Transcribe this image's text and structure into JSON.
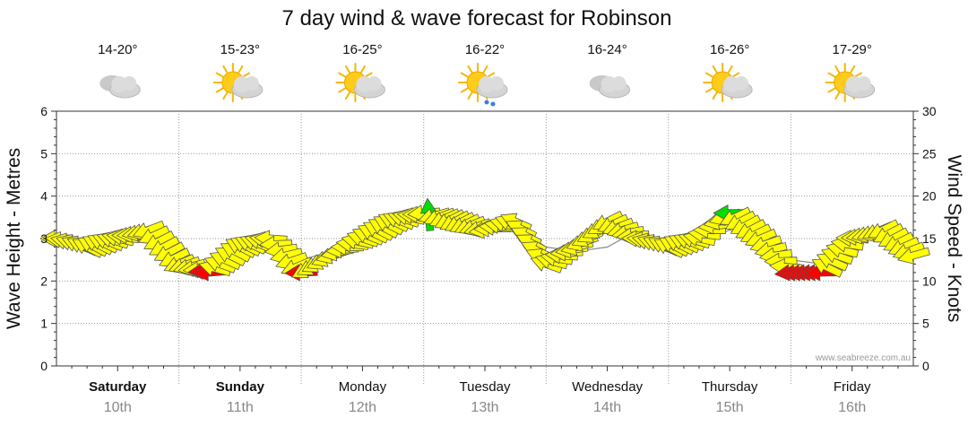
{
  "chart_data": {
    "type": "line",
    "title": "7 day wind & wave forecast for Robinson",
    "ylabel_left": "Wave Height - Metres",
    "ylabel_right": "Wind Speed - Knots",
    "ylim_left": [
      0,
      6
    ],
    "ylim_right": [
      0,
      30
    ],
    "yticks_left": [
      "0",
      "1",
      "2",
      "3",
      "4",
      "5",
      "6"
    ],
    "yticks_right": [
      "0",
      "5",
      "10",
      "15",
      "20",
      "25",
      "30"
    ],
    "grid": "dotted",
    "watermark": "www.seabreeze.com.au",
    "days": [
      {
        "name": "Saturday",
        "date": "10th",
        "temp": "14-20°",
        "icon": "cloudy-icon",
        "bold": true
      },
      {
        "name": "Sunday",
        "date": "11th",
        "temp": "15-23°",
        "icon": "partly-cloudy-icon",
        "bold": true
      },
      {
        "name": "Monday",
        "date": "12th",
        "temp": "16-25°",
        "icon": "partly-cloudy-icon",
        "bold": false
      },
      {
        "name": "Tuesday",
        "date": "13th",
        "temp": "16-22°",
        "icon": "showers-icon",
        "bold": false
      },
      {
        "name": "Wednesday",
        "date": "14th",
        "temp": "16-24°",
        "icon": "cloudy-icon",
        "bold": false
      },
      {
        "name": "Thursday",
        "date": "15th",
        "temp": "16-26°",
        "icon": "partly-cloudy-icon",
        "bold": false
      },
      {
        "name": "Friday",
        "date": "16th",
        "temp": "17-29°",
        "icon": "partly-cloudy-icon",
        "bold": false
      }
    ],
    "x": [
      0,
      0.25,
      0.5,
      0.75,
      1,
      1.25,
      1.5,
      1.75,
      2,
      2.25,
      2.5,
      2.75,
      3,
      3.25,
      3.5,
      3.75,
      4,
      4.25,
      4.5,
      4.75,
      5,
      5.25,
      5.5,
      5.75,
      6,
      6.25,
      6.5,
      6.75,
      7
    ],
    "x_unit": "days from Saturday 10th 00:00",
    "series": [
      {
        "name": "Wave Height",
        "axis": "left",
        "units": "m",
        "values": [
          3.0,
          2.8,
          2.9,
          3.0,
          2.6,
          2.4,
          3.0,
          2.9,
          2.5,
          2.7,
          2.9,
          3.2,
          3.5,
          3.4,
          3.2,
          3.3,
          2.8,
          2.7,
          2.8,
          3.2,
          2.7,
          2.9,
          3.2,
          2.9,
          2.5,
          2.4,
          2.9,
          3.1,
          2.5
        ]
      },
      {
        "name": "Wind Speed",
        "axis": "right",
        "units": "knots",
        "values": [
          15,
          14,
          15,
          16,
          12,
          11,
          14,
          15,
          11,
          13,
          15,
          17,
          18,
          17,
          16,
          17,
          12,
          14,
          17,
          15,
          14,
          15,
          18,
          15,
          11,
          11,
          15,
          16,
          13
        ]
      }
    ],
    "colors": {
      "wind_light": "#ffff00",
      "wind_onshore_strong": "#ff0000",
      "wind_offshore": "#00dd00",
      "arrow_stroke": "#555555",
      "wave_line": "#888888",
      "grid": "#9a9a9a"
    }
  }
}
